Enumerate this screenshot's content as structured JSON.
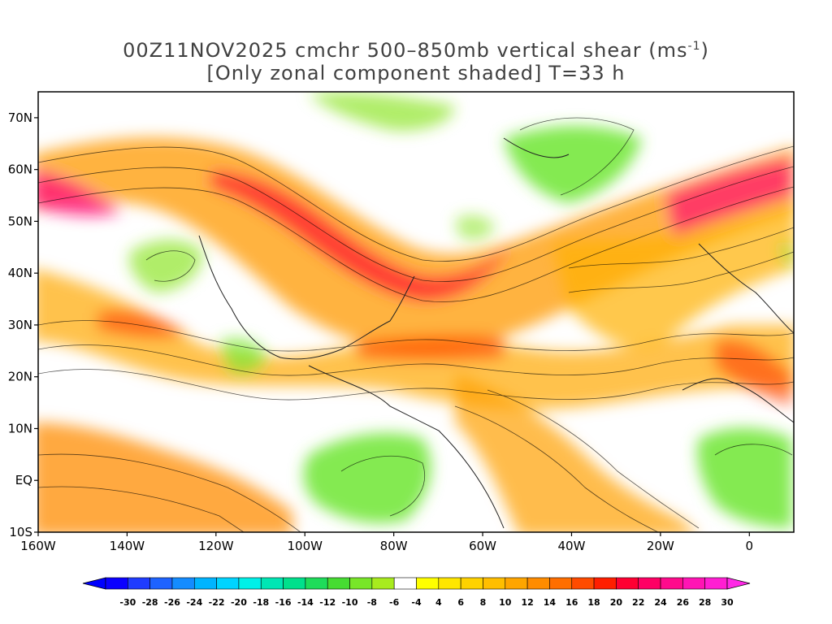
{
  "title": {
    "line1_prefix": "00Z11NOV2025 cmchr 500–850mb vertical shear (ms",
    "line1_sup": "-1",
    "line1_suffix": ")",
    "line2_part1": "[Only zonal component shaded]",
    "line2_part2": "T=33 h"
  },
  "map": {
    "lat_labels": [
      "70N",
      "60N",
      "50N",
      "40N",
      "30N",
      "20N",
      "10N",
      "EQ",
      "10S"
    ],
    "lon_labels": [
      "160W",
      "140W",
      "120W",
      "100W",
      "80W",
      "60W",
      "40W",
      "20W",
      "0"
    ],
    "extent": {
      "lon_min": -160,
      "lon_max": 10,
      "lat_min": -10,
      "lat_max": 75
    }
  },
  "colorbar": {
    "labels": [
      "-30",
      "-28",
      "-26",
      "-24",
      "-22",
      "-20",
      "-18",
      "-16",
      "-14",
      "-12",
      "-10",
      "-8",
      "-6",
      "-4",
      "4",
      "6",
      "8",
      "10",
      "12",
      "14",
      "16",
      "18",
      "20",
      "22",
      "24",
      "26",
      "28",
      "30"
    ],
    "colors": [
      "#0b00ff",
      "#1f3cff",
      "#1e63ff",
      "#148cff",
      "#00b4ff",
      "#00d4ff",
      "#00f0e8",
      "#00e6b4",
      "#00e08c",
      "#1edc5a",
      "#46dc32",
      "#78e628",
      "#a8eb1e",
      "#ffffff",
      "#ffff00",
      "#ffe600",
      "#ffd200",
      "#ffbe00",
      "#ffa500",
      "#ff8c00",
      "#ff6e00",
      "#ff4b00",
      "#ff1e00",
      "#ff0032",
      "#ff0064",
      "#ff0a8c",
      "#ff14b4",
      "#ff1ed2"
    ],
    "low_end_color": "#0000ff",
    "high_end_color": "#ff28e6"
  }
}
